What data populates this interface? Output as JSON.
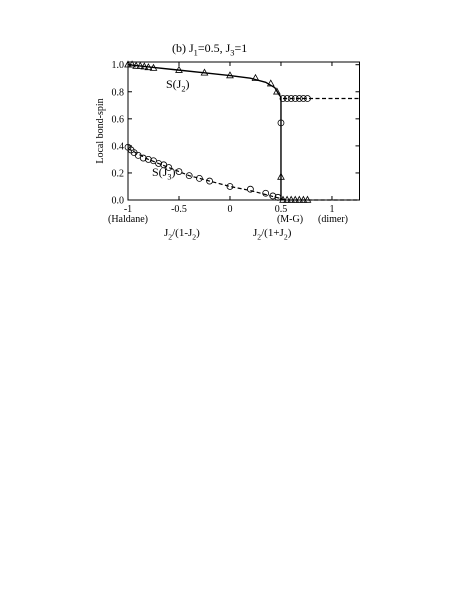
{
  "chart_data": {
    "type": "line",
    "title": [
      "(b) J",
      "1",
      "=0.5, J",
      "3",
      "=1"
    ],
    "ylabel": "Local bond-spin",
    "xlabels": [
      [
        "J",
        "2",
        "/(1-J",
        "2",
        ")"
      ],
      [
        "J",
        "2",
        "/(1+J",
        "2",
        ")"
      ]
    ],
    "annotations": [
      "(Haldane)",
      "(M-G)",
      "(dimer)"
    ],
    "series_labels": [
      [
        "S(J",
        "2",
        ")"
      ],
      [
        "S(J",
        "3",
        ")"
      ]
    ],
    "xlim": [
      -1,
      1.27
    ],
    "ylim": [
      0,
      1.02
    ],
    "xticks": [
      -1,
      -0.5,
      0,
      0.5,
      1
    ],
    "yticks": [
      {
        "value": 0,
        "label": "0.0"
      },
      {
        "value": 0.2,
        "label": "0.2"
      },
      {
        "value": 0.4,
        "label": "0.4"
      },
      {
        "value": 0.6,
        "label": "0.6"
      },
      {
        "value": 0.8,
        "label": "0.8"
      },
      {
        "value": 1,
        "label": "1.0"
      }
    ],
    "series": [
      {
        "style": "solid",
        "color": "#000000",
        "x": [
          -1,
          -0.75,
          -0.5,
          -0.25,
          0,
          0.2,
          0.35,
          0.44,
          0.48,
          0.5,
          0.5
        ],
        "values": [
          1.0,
          0.98,
          0.96,
          0.94,
          0.92,
          0.9,
          0.87,
          0.83,
          0.78,
          0.76,
          0.0
        ]
      },
      {
        "style": "dashed",
        "color": "#000000",
        "x": [
          0.52,
          1.27
        ],
        "values": [
          0.75,
          0.75
        ]
      },
      {
        "style": "dashed",
        "color": "#000000",
        "x": [
          -1,
          -0.8,
          -0.6,
          -0.4,
          -0.2,
          0,
          0.2,
          0.4,
          0.5,
          0.55,
          1.27
        ],
        "values": [
          0.38,
          0.3,
          0.24,
          0.18,
          0.14,
          0.1,
          0.07,
          0.03,
          0.01,
          0.0,
          0.0
        ]
      },
      {
        "style": "triangle",
        "color": "#000000",
        "x": [
          -1,
          -0.96,
          -0.92,
          -0.88,
          -0.84,
          -0.8,
          -0.75,
          -0.5,
          -0.25,
          0,
          0.25,
          0.4,
          0.46,
          0.5,
          0.52,
          0.56,
          0.6,
          0.64,
          0.68,
          0.72,
          0.76
        ],
        "values": [
          1.0,
          1.0,
          0.99,
          0.99,
          0.985,
          0.98,
          0.975,
          0.96,
          0.94,
          0.92,
          0.9,
          0.86,
          0.8,
          0.17,
          0,
          0,
          0,
          0,
          0,
          0,
          0
        ]
      },
      {
        "style": "circle",
        "color": "#000000",
        "x": [
          -1,
          -0.97,
          -0.94,
          -0.9,
          -0.85,
          -0.8,
          -0.75,
          -0.7,
          -0.65,
          -0.6,
          -0.5,
          -0.4,
          -0.3,
          -0.2,
          0,
          0.2,
          0.35,
          0.42,
          0.47,
          0.5,
          0.52,
          0.56,
          0.6,
          0.64,
          0.68,
          0.72,
          0.76
        ],
        "values": [
          0.39,
          0.37,
          0.35,
          0.33,
          0.31,
          0.3,
          0.29,
          0.27,
          0.26,
          0.24,
          0.21,
          0.18,
          0.16,
          0.14,
          0.1,
          0.08,
          0.05,
          0.03,
          0.02,
          0.57,
          0.75,
          0.75,
          0.75,
          0.75,
          0.75,
          0.75,
          0.75
        ]
      }
    ]
  }
}
